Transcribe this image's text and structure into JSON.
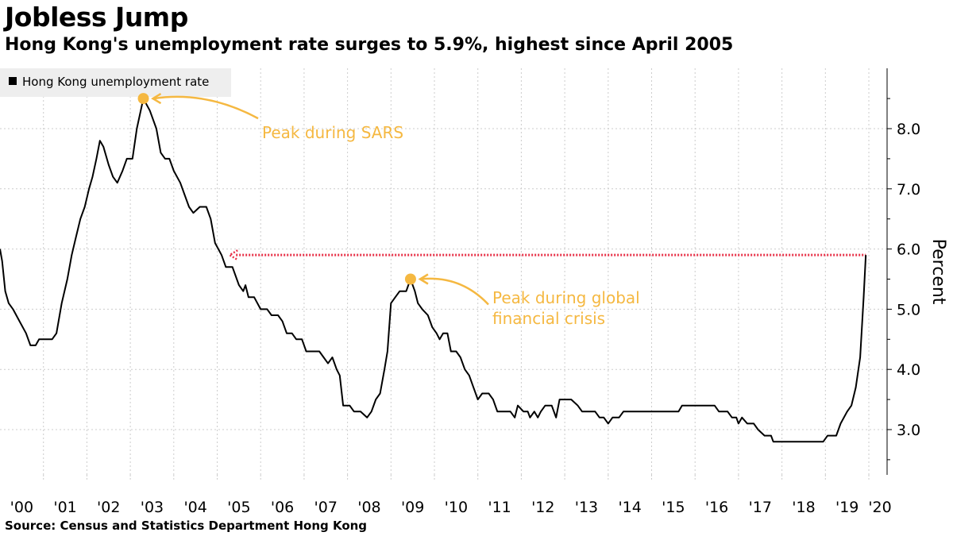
{
  "header": {
    "title": "Jobless Jump",
    "subtitle": "Hong Kong's unemployment rate surges to 5.9%, highest since April 2005"
  },
  "footer": {
    "source": "Source: Census and Statistics Department Hong Kong"
  },
  "colors": {
    "line": "#000000",
    "annotation": "#f5b841",
    "reference": "#e8334a",
    "grid": "#cccccc"
  },
  "chart_data": {
    "type": "line",
    "title": "Jobless Jump",
    "subtitle": "Hong Kong's unemployment rate surges to 5.9%, highest since April 2005",
    "ylabel": "Percent",
    "y_axis_position": "right",
    "ylim": [
      2.2,
      9.0
    ],
    "yticks": [
      3.0,
      4.0,
      5.0,
      6.0,
      7.0,
      8.0
    ],
    "ytick_labels": [
      "3.0",
      "4.0",
      "5.0",
      "6.0",
      "7.0",
      "8.0"
    ],
    "xlim": [
      2000.0,
      2020.42
    ],
    "xtick_labels": [
      "'00",
      "'01",
      "'02",
      "'03",
      "'04",
      "'05",
      "'06",
      "'07",
      "'08",
      "'09",
      "'10",
      "'11",
      "'12",
      "'13",
      "'14",
      "'15",
      "'16",
      "'17",
      "'18",
      "'19",
      "'20"
    ],
    "grid": true,
    "legend": {
      "position": "top-left",
      "entries": [
        "Hong Kong unemployment rate"
      ]
    },
    "series": [
      {
        "name": "Hong Kong unemployment rate",
        "points": [
          [
            2000.0,
            6.0
          ],
          [
            2000.05,
            5.8
          ],
          [
            2000.12,
            5.3
          ],
          [
            2000.2,
            5.1
          ],
          [
            2000.3,
            5.0
          ],
          [
            2000.45,
            4.8
          ],
          [
            2000.6,
            4.6
          ],
          [
            2000.7,
            4.4
          ],
          [
            2000.82,
            4.4
          ],
          [
            2000.9,
            4.5
          ],
          [
            2001.05,
            4.5
          ],
          [
            2001.2,
            4.5
          ],
          [
            2001.3,
            4.6
          ],
          [
            2001.42,
            5.1
          ],
          [
            2001.55,
            5.5
          ],
          [
            2001.65,
            5.9
          ],
          [
            2001.75,
            6.2
          ],
          [
            2001.85,
            6.5
          ],
          [
            2001.95,
            6.7
          ],
          [
            2002.05,
            7.0
          ],
          [
            2002.13,
            7.2
          ],
          [
            2002.22,
            7.5
          ],
          [
            2002.3,
            7.8
          ],
          [
            2002.38,
            7.7
          ],
          [
            2002.5,
            7.4
          ],
          [
            2002.6,
            7.2
          ],
          [
            2002.7,
            7.1
          ],
          [
            2002.82,
            7.3
          ],
          [
            2002.92,
            7.5
          ],
          [
            2003.05,
            7.5
          ],
          [
            2003.15,
            8.0
          ],
          [
            2003.3,
            8.5
          ],
          [
            2003.45,
            8.3
          ],
          [
            2003.6,
            8.0
          ],
          [
            2003.7,
            7.6
          ],
          [
            2003.8,
            7.5
          ],
          [
            2003.9,
            7.5
          ],
          [
            2004.0,
            7.3
          ],
          [
            2004.15,
            7.1
          ],
          [
            2004.25,
            6.9
          ],
          [
            2004.35,
            6.7
          ],
          [
            2004.45,
            6.6
          ],
          [
            2004.6,
            6.7
          ],
          [
            2004.75,
            6.7
          ],
          [
            2004.85,
            6.5
          ],
          [
            2004.95,
            6.1
          ],
          [
            2005.1,
            5.9
          ],
          [
            2005.2,
            5.7
          ],
          [
            2005.35,
            5.7
          ],
          [
            2005.5,
            5.4
          ],
          [
            2005.6,
            5.3
          ],
          [
            2005.65,
            5.4
          ],
          [
            2005.72,
            5.2
          ],
          [
            2005.85,
            5.2
          ],
          [
            2006.0,
            5.0
          ],
          [
            2006.15,
            5.0
          ],
          [
            2006.25,
            4.9
          ],
          [
            2006.4,
            4.9
          ],
          [
            2006.5,
            4.8
          ],
          [
            2006.6,
            4.6
          ],
          [
            2006.72,
            4.6
          ],
          [
            2006.82,
            4.5
          ],
          [
            2006.95,
            4.5
          ],
          [
            2007.05,
            4.3
          ],
          [
            2007.2,
            4.3
          ],
          [
            2007.35,
            4.3
          ],
          [
            2007.45,
            4.2
          ],
          [
            2007.55,
            4.1
          ],
          [
            2007.65,
            4.2
          ],
          [
            2007.75,
            4.0
          ],
          [
            2007.82,
            3.9
          ],
          [
            2007.9,
            3.4
          ],
          [
            2008.05,
            3.4
          ],
          [
            2008.15,
            3.3
          ],
          [
            2008.3,
            3.3
          ],
          [
            2008.45,
            3.2
          ],
          [
            2008.55,
            3.3
          ],
          [
            2008.65,
            3.5
          ],
          [
            2008.75,
            3.6
          ],
          [
            2008.85,
            4.0
          ],
          [
            2008.92,
            4.3
          ],
          [
            2009.0,
            5.1
          ],
          [
            2009.1,
            5.2
          ],
          [
            2009.2,
            5.3
          ],
          [
            2009.35,
            5.3
          ],
          [
            2009.45,
            5.5
          ],
          [
            2009.55,
            5.3
          ],
          [
            2009.62,
            5.1
          ],
          [
            2009.72,
            5.0
          ],
          [
            2009.85,
            4.9
          ],
          [
            2009.95,
            4.7
          ],
          [
            2010.05,
            4.6
          ],
          [
            2010.12,
            4.5
          ],
          [
            2010.2,
            4.6
          ],
          [
            2010.3,
            4.6
          ],
          [
            2010.38,
            4.3
          ],
          [
            2010.5,
            4.3
          ],
          [
            2010.6,
            4.2
          ],
          [
            2010.7,
            4.0
          ],
          [
            2010.8,
            3.9
          ],
          [
            2010.9,
            3.7
          ],
          [
            2011.0,
            3.5
          ],
          [
            2011.1,
            3.6
          ],
          [
            2011.25,
            3.6
          ],
          [
            2011.35,
            3.5
          ],
          [
            2011.45,
            3.3
          ],
          [
            2011.6,
            3.3
          ],
          [
            2011.75,
            3.3
          ],
          [
            2011.85,
            3.2
          ],
          [
            2011.92,
            3.4
          ],
          [
            2012.05,
            3.3
          ],
          [
            2012.15,
            3.3
          ],
          [
            2012.2,
            3.2
          ],
          [
            2012.3,
            3.3
          ],
          [
            2012.38,
            3.2
          ],
          [
            2012.45,
            3.3
          ],
          [
            2012.55,
            3.4
          ],
          [
            2012.7,
            3.4
          ],
          [
            2012.8,
            3.2
          ],
          [
            2012.88,
            3.5
          ],
          [
            2013.0,
            3.5
          ],
          [
            2013.15,
            3.5
          ],
          [
            2013.3,
            3.4
          ],
          [
            2013.4,
            3.3
          ],
          [
            2013.55,
            3.3
          ],
          [
            2013.7,
            3.3
          ],
          [
            2013.8,
            3.2
          ],
          [
            2013.9,
            3.2
          ],
          [
            2014.0,
            3.1
          ],
          [
            2014.1,
            3.2
          ],
          [
            2014.25,
            3.2
          ],
          [
            2014.35,
            3.3
          ],
          [
            2014.5,
            3.3
          ],
          [
            2014.75,
            3.3
          ],
          [
            2015.0,
            3.3
          ],
          [
            2015.25,
            3.3
          ],
          [
            2015.5,
            3.3
          ],
          [
            2015.62,
            3.3
          ],
          [
            2015.7,
            3.4
          ],
          [
            2015.85,
            3.4
          ],
          [
            2016.0,
            3.4
          ],
          [
            2016.25,
            3.4
          ],
          [
            2016.45,
            3.4
          ],
          [
            2016.55,
            3.3
          ],
          [
            2016.75,
            3.3
          ],
          [
            2016.85,
            3.2
          ],
          [
            2016.95,
            3.2
          ],
          [
            2017.0,
            3.1
          ],
          [
            2017.08,
            3.2
          ],
          [
            2017.2,
            3.1
          ],
          [
            2017.35,
            3.1
          ],
          [
            2017.45,
            3.0
          ],
          [
            2017.6,
            2.9
          ],
          [
            2017.75,
            2.9
          ],
          [
            2017.8,
            2.8
          ],
          [
            2018.0,
            2.8
          ],
          [
            2018.25,
            2.8
          ],
          [
            2018.5,
            2.8
          ],
          [
            2018.75,
            2.8
          ],
          [
            2018.95,
            2.8
          ],
          [
            2019.05,
            2.9
          ],
          [
            2019.25,
            2.9
          ],
          [
            2019.35,
            3.1
          ],
          [
            2019.5,
            3.3
          ],
          [
            2019.6,
            3.4
          ],
          [
            2019.7,
            3.7
          ],
          [
            2019.8,
            4.2
          ],
          [
            2019.88,
            5.2
          ],
          [
            2019.93,
            5.9
          ]
        ]
      }
    ],
    "reference_line": {
      "y": 5.9,
      "x_start": 2005.25,
      "x_end": 2019.93,
      "style": "dotted",
      "arrow": "left"
    },
    "annotations": [
      {
        "text": "Peak during SARS",
        "x": 2003.3,
        "y": 8.5
      },
      {
        "text": "Peak during global financial crisis",
        "lines": [
          "Peak during global",
          "financial crisis"
        ],
        "x": 2009.45,
        "y": 5.5
      }
    ]
  }
}
